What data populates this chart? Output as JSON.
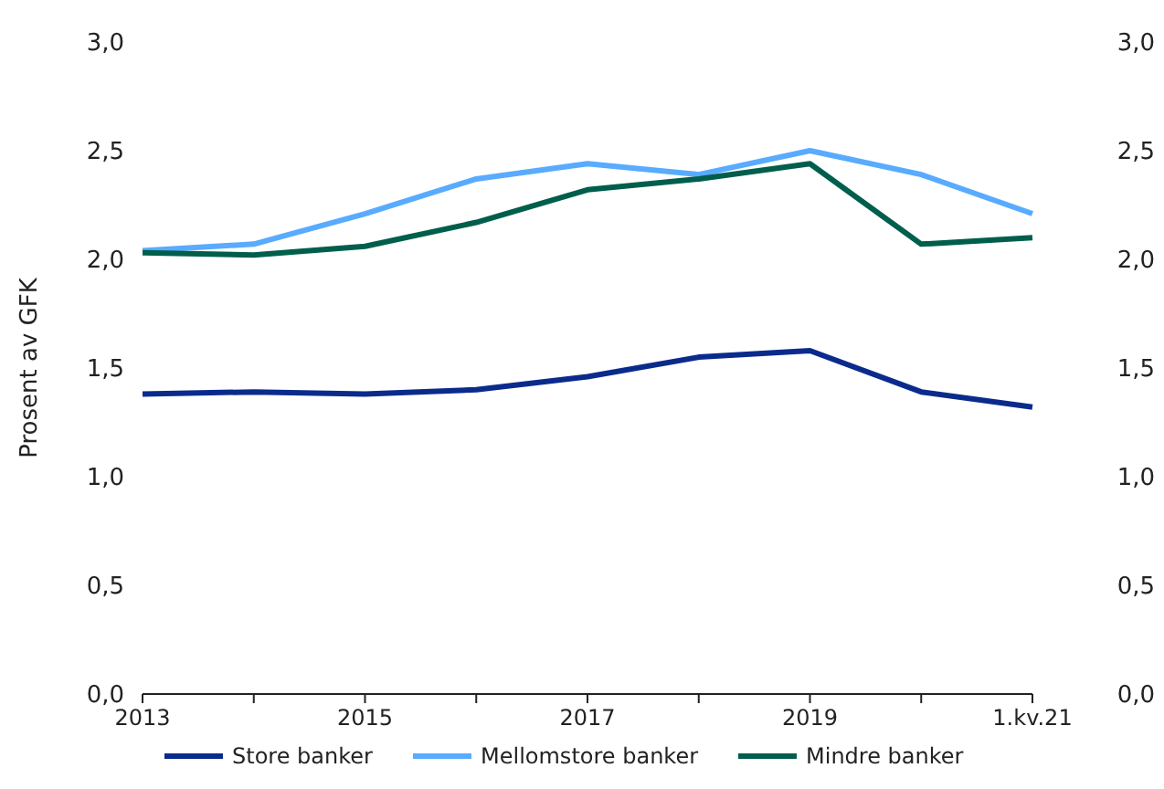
{
  "chart_data": {
    "type": "line",
    "ylabel": "Prosent av GFK",
    "categories": [
      "2013",
      null,
      "2015",
      null,
      "2017",
      null,
      "2019",
      null,
      "1.kv.21"
    ],
    "series": [
      {
        "name": "Store banker",
        "color": "#0b2b8c",
        "values": [
          1.38,
          1.39,
          1.38,
          1.4,
          1.46,
          1.55,
          1.58,
          1.39,
          1.32
        ]
      },
      {
        "name": "Mellomstore banker",
        "color": "#58abff",
        "values": [
          2.04,
          2.07,
          2.21,
          2.37,
          2.44,
          2.39,
          2.5,
          2.39,
          2.21
        ]
      },
      {
        "name": "Mindre banker",
        "color": "#005e4c",
        "values": [
          2.03,
          2.02,
          2.06,
          2.17,
          2.32,
          2.37,
          2.44,
          2.07,
          2.1
        ]
      }
    ],
    "ylim": [
      0,
      3
    ],
    "yticks": [
      {
        "value": 0,
        "label": "0,0"
      },
      {
        "value": 0.5,
        "label": "0,5"
      },
      {
        "value": 1,
        "label": "1,0"
      },
      {
        "value": 1.5,
        "label": "1,5"
      },
      {
        "value": 2,
        "label": "2,0"
      },
      {
        "value": 2.5,
        "label": "2,5"
      },
      {
        "value": 3,
        "label": "3,0"
      }
    ],
    "y2lim": [
      0,
      3
    ],
    "y2ticks": [
      {
        "value": 0,
        "label": "0,0"
      },
      {
        "value": 0.5,
        "label": "0,5"
      },
      {
        "value": 1,
        "label": "1,0"
      },
      {
        "value": 1.5,
        "label": "1,5"
      },
      {
        "value": 2,
        "label": "2,0"
      },
      {
        "value": 2.5,
        "label": "2,5"
      },
      {
        "value": 3,
        "label": "3,0"
      }
    ],
    "legend": "bottom",
    "grid": false,
    "marker": "none",
    "line_style": "solid"
  }
}
